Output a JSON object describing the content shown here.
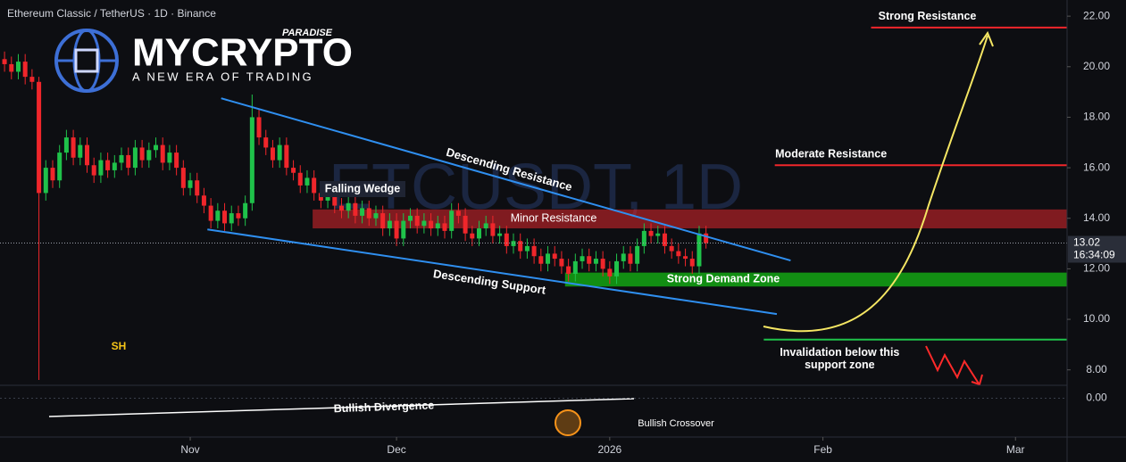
{
  "chart_data": {
    "type": "candlestick",
    "title": "Ethereum Classic / TetherUS · 1D · Binance",
    "watermark": "ETCUSDT, 1D",
    "logo": {
      "brand": "MYCRYPTO",
      "tag": "PARADISE",
      "slogan": "A NEW ERA OF TRADING"
    },
    "up_color": "#1fc24a",
    "down_color": "#f0262b",
    "x": [
      0,
      1,
      2,
      3,
      4,
      5,
      6,
      7,
      8,
      9,
      10,
      11,
      12,
      13,
      14,
      15,
      16,
      17,
      18,
      19,
      20,
      21,
      22,
      23,
      24,
      25,
      26,
      27,
      28,
      29,
      30,
      31,
      32,
      33,
      34,
      35,
      36,
      37,
      38,
      39,
      40,
      41,
      42,
      43,
      44,
      45,
      46,
      47,
      48,
      49,
      50,
      51,
      52,
      53,
      54,
      55,
      56,
      57,
      58,
      59,
      60,
      61,
      62,
      63,
      64,
      65,
      66,
      67,
      68,
      69,
      70,
      71,
      72,
      73,
      74,
      75,
      76,
      77,
      78,
      79,
      80,
      81,
      82,
      83,
      84,
      85,
      86,
      87,
      88,
      89,
      90,
      91,
      92,
      93,
      94,
      95,
      96,
      97,
      98,
      99,
      100,
      101,
      102
    ],
    "open": [
      20.3,
      20.1,
      19.8,
      20.2,
      19.6,
      19.4,
      15.0,
      16.0,
      15.5,
      16.6,
      17.2,
      16.4,
      16.9,
      16.1,
      15.7,
      16.3,
      15.9,
      16.2,
      16.5,
      16.0,
      16.8,
      16.3,
      16.7,
      16.9,
      16.2,
      16.6,
      16.0,
      15.2,
      15.5,
      14.9,
      14.5,
      13.9,
      14.3,
      13.8,
      14.2,
      14.0,
      14.6,
      18.0,
      17.2,
      16.8,
      16.3,
      16.9,
      16.0,
      15.8,
      15.3,
      15.6,
      15.0,
      14.7,
      15.1,
      14.5,
      14.3,
      14.6,
      14.1,
      14.4,
      14.0,
      14.2,
      13.6,
      13.9,
      13.2,
      13.9,
      14.1,
      13.7,
      13.9,
      13.6,
      13.8,
      13.5,
      14.3,
      14.1,
      13.4,
      13.2,
      13.6,
      13.8,
      13.3,
      13.4,
      12.9,
      13.1,
      12.7,
      12.9,
      12.5,
      12.2,
      12.6,
      12.4,
      12.1,
      11.8,
      12.3,
      12.5,
      12.2,
      12.4,
      12.0,
      11.7,
      12.3,
      12.6,
      12.2,
      12.9,
      13.5,
      13.3,
      13.4,
      12.9,
      12.7,
      12.5,
      12.4,
      12.1,
      13.4
    ],
    "high": [
      20.6,
      20.4,
      20.5,
      20.5,
      19.9,
      19.6,
      16.3,
      16.3,
      16.9,
      17.5,
      17.5,
      17.2,
      17.2,
      16.4,
      16.6,
      16.6,
      16.5,
      16.8,
      16.8,
      17.1,
      17.1,
      17.0,
      17.2,
      17.2,
      16.9,
      16.9,
      16.3,
      15.8,
      15.8,
      15.2,
      14.8,
      14.6,
      14.6,
      14.5,
      14.5,
      14.9,
      18.9,
      18.3,
      17.5,
      17.1,
      17.2,
      17.2,
      16.3,
      16.1,
      15.9,
      15.9,
      15.3,
      15.4,
      15.4,
      14.8,
      14.9,
      14.9,
      14.7,
      14.7,
      14.5,
      14.5,
      14.2,
      14.2,
      14.2,
      14.4,
      14.4,
      14.2,
      14.2,
      14.1,
      14.1,
      14.6,
      14.6,
      14.4,
      13.7,
      13.9,
      14.1,
      14.1,
      13.7,
      13.7,
      13.4,
      13.4,
      13.2,
      13.2,
      12.8,
      12.9,
      12.9,
      12.7,
      12.4,
      12.6,
      12.8,
      12.8,
      12.7,
      12.7,
      12.3,
      12.6,
      12.9,
      12.9,
      13.2,
      13.8,
      13.8,
      13.7,
      13.7,
      13.2,
      13.0,
      12.8,
      12.7,
      13.7,
      13.7
    ],
    "low": [
      19.8,
      19.5,
      19.5,
      19.3,
      19.1,
      7.6,
      14.7,
      15.2,
      15.2,
      16.3,
      16.1,
      16.1,
      15.8,
      15.4,
      15.4,
      15.6,
      15.6,
      15.9,
      15.7,
      15.7,
      16.0,
      16.0,
      16.4,
      15.9,
      15.9,
      15.7,
      14.9,
      14.9,
      14.6,
      14.2,
      13.6,
      13.6,
      13.5,
      13.5,
      13.7,
      13.7,
      14.3,
      16.9,
      16.5,
      16.0,
      16.0,
      15.7,
      15.5,
      15.0,
      15.0,
      14.7,
      14.4,
      14.4,
      14.2,
      14.0,
      14.0,
      13.8,
      13.8,
      13.7,
      13.7,
      13.3,
      13.3,
      12.9,
      12.9,
      13.6,
      13.4,
      13.4,
      13.3,
      13.3,
      13.2,
      13.2,
      13.8,
      13.1,
      12.9,
      12.9,
      13.3,
      13.0,
      13.0,
      12.6,
      12.6,
      12.4,
      12.4,
      12.2,
      11.9,
      11.9,
      12.1,
      11.8,
      11.5,
      11.5,
      12.0,
      11.9,
      11.9,
      11.7,
      11.4,
      11.4,
      12.0,
      11.9,
      11.9,
      12.6,
      13.0,
      13.0,
      12.6,
      12.4,
      12.2,
      12.1,
      11.8,
      11.8,
      12.8
    ],
    "close": [
      20.1,
      19.8,
      20.2,
      19.6,
      19.4,
      15.0,
      16.0,
      15.5,
      16.6,
      17.2,
      16.4,
      16.9,
      16.1,
      15.7,
      16.3,
      15.9,
      16.2,
      16.5,
      16.0,
      16.8,
      16.3,
      16.7,
      16.9,
      16.2,
      16.6,
      16.0,
      15.2,
      15.5,
      14.9,
      14.5,
      13.9,
      14.3,
      13.8,
      14.2,
      14.0,
      14.6,
      18.0,
      17.2,
      16.8,
      16.3,
      16.9,
      16.0,
      15.8,
      15.3,
      15.6,
      15.0,
      14.7,
      15.1,
      14.5,
      14.3,
      14.6,
      14.1,
      14.4,
      14.0,
      14.2,
      13.6,
      13.9,
      13.2,
      13.9,
      14.1,
      13.7,
      13.9,
      13.6,
      13.8,
      13.5,
      14.3,
      14.1,
      13.4,
      13.2,
      13.6,
      13.8,
      13.3,
      13.4,
      12.9,
      13.1,
      12.7,
      12.9,
      12.5,
      12.2,
      12.6,
      12.4,
      12.1,
      11.8,
      12.3,
      12.5,
      12.2,
      12.4,
      12.0,
      11.7,
      12.3,
      12.6,
      12.2,
      12.9,
      13.5,
      13.3,
      13.4,
      12.9,
      12.7,
      12.5,
      12.4,
      12.1,
      13.4,
      13.02
    ],
    "countdown": "16:34:09",
    "xlim": [
      -0.66,
      154.5
    ],
    "xticks": [
      {
        "value": 27,
        "label": "Nov"
      },
      {
        "value": 57,
        "label": "Dec"
      },
      {
        "value": 88,
        "label": "2026"
      },
      {
        "value": 119,
        "label": "Feb"
      },
      {
        "value": 147,
        "label": "Mar"
      }
    ],
    "ylim": [
      7.46,
      22.64
    ],
    "yticks": [
      {
        "value": 8,
        "label": "8.00"
      },
      {
        "value": 10,
        "label": "10.00"
      },
      {
        "value": 12,
        "label": "12.00"
      },
      {
        "value": 14,
        "label": "14.00"
      },
      {
        "value": 16,
        "label": "16.00"
      },
      {
        "value": 18,
        "label": "18.00"
      },
      {
        "value": 20,
        "label": "20.00"
      },
      {
        "value": 22,
        "label": "22.00"
      }
    ],
    "levels": [
      {
        "name": "Strong Resistance",
        "value": 21.55,
        "from_x": 126,
        "color": "#f0262b"
      },
      {
        "name": "Moderate Resistance",
        "value": 16.1,
        "from_x": 112,
        "color": "#f0262b"
      },
      {
        "name": [
          "Invalidation below this",
          "support zone"
        ],
        "value": 9.2,
        "from_x": 110.4,
        "color": "#1fc24a"
      }
    ],
    "zones": [
      {
        "name": "Minor Resistance",
        "from": 13.6,
        "to": 14.35,
        "from_x": 44.8,
        "color": "#e0262b"
      },
      {
        "name": "Strong Demand Zone",
        "from": 11.3,
        "to": 11.85,
        "from_x": 81.5,
        "color": "#14a514"
      }
    ],
    "trendlines": [
      {
        "name": "Descending Resistance",
        "x": [
          31.5,
          114.3
        ],
        "y": [
          18.75,
          12.33
        ],
        "color": "#2f8ff0"
      },
      {
        "name": "Descending Support",
        "x": [
          29.5,
          112.3
        ],
        "y": [
          13.56,
          10.21
        ],
        "color": "#2f8ff0"
      }
    ],
    "annotations": {
      "falling_wedge": "Falling Wedge",
      "sh": "SH",
      "bullish_divergence": "Bullish Divergence",
      "bullish_crossover": "Bullish Crossover"
    },
    "indicator": {
      "ylim": [
        -3,
        1
      ],
      "yticks": [
        {
          "value": 0,
          "label": "0.00"
        }
      ]
    }
  }
}
